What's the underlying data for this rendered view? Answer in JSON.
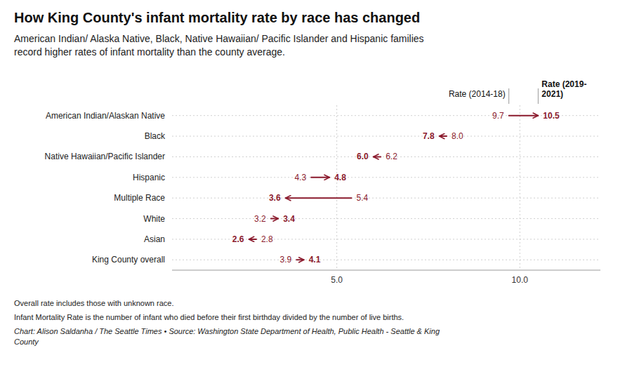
{
  "chart_data": {
    "type": "arrow",
    "title": "How King County's infant mortality rate by race has changed",
    "subtitle": "American Indian/ Alaska Native, Black, Native Hawaiian/ Pacific Islander and Hispanic families\nrecord higher rates of infant mortality than the county average.",
    "annotations": [
      "Overall rate includes those with unknown race.",
      "Infant Mortality Rate is the number of infant who died before their first birthday divided by the number of live births.",
      "Chart: Alison Saldanha / The Seattle Times • Source: Washington State Department of Health, Public Health - Seattle & King\nCounty"
    ],
    "categories": [
      "American Indian/Alaskan Native",
      "Black",
      "Native Hawaiian/Pacific Islander",
      "Hispanic",
      "Multiple Race",
      "White",
      "Asian",
      "King County overall"
    ],
    "series": [
      {
        "name": "Rate (2014-18)",
        "values": [
          9.7,
          8.0,
          6.2,
          4.3,
          5.4,
          3.2,
          2.8,
          3.9
        ],
        "value_labels": [
          "9.7",
          "8.0",
          "6.2",
          "4.3",
          "5.4",
          "3.2",
          "2.8",
          "3.9"
        ]
      },
      {
        "name": "Rate (2019-\n2021)",
        "values": [
          10.5,
          7.8,
          6.0,
          4.8,
          3.6,
          3.4,
          2.6,
          4.1
        ],
        "value_labels": [
          "10.5",
          "7.8",
          "6.0",
          "4.8",
          "3.6",
          "3.4",
          "2.6",
          "4.1"
        ]
      }
    ],
    "color": "#8B1A2D",
    "xlim": [
      0.5,
      12.2
    ],
    "xticks": [
      {
        "value": 5,
        "label": "5.0"
      },
      {
        "value": 10,
        "label": "10.0"
      }
    ],
    "grid": true,
    "legend": "top-right",
    "data_labels": true
  }
}
